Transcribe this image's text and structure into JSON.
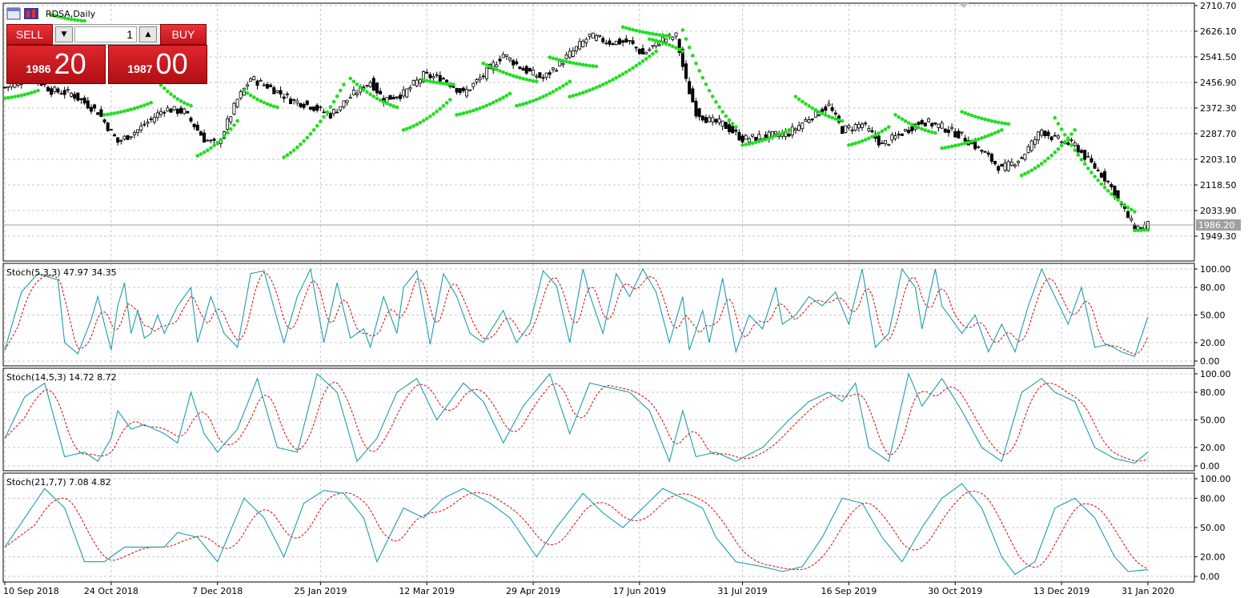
{
  "window": {
    "symbol_title": "RDSA,Daily"
  },
  "trade_panel": {
    "sell_label": "SELL",
    "buy_label": "BUY",
    "lot": "1",
    "sell_price_small": "1986",
    "sell_price_big": "20",
    "buy_price_small": "1987",
    "buy_price_big": "00"
  },
  "colors": {
    "sar": "#22dd22",
    "main_line": "#1f9bb0",
    "signal_line": "#e00000",
    "candle": "#000000"
  },
  "chart_data": [
    {
      "type": "candlestick",
      "yticks": [
        "2710.70",
        "2626.10",
        "2541.50",
        "2456.90",
        "2372.30",
        "2287.70",
        "2203.10",
        "2118.50",
        "2033.90",
        "1949.30"
      ],
      "ylim": [
        1908,
        2712
      ],
      "current_price": "1986.20",
      "close_anchors": [
        [
          0,
          2440
        ],
        [
          8,
          2480
        ],
        [
          14,
          2430
        ],
        [
          20,
          2420
        ],
        [
          28,
          2360
        ],
        [
          34,
          2260
        ],
        [
          40,
          2300
        ],
        [
          48,
          2370
        ],
        [
          54,
          2360
        ],
        [
          60,
          2270
        ],
        [
          64,
          2250
        ],
        [
          70,
          2400
        ],
        [
          74,
          2470
        ],
        [
          80,
          2440
        ],
        [
          86,
          2400
        ],
        [
          92,
          2380
        ],
        [
          98,
          2350
        ],
        [
          104,
          2410
        ],
        [
          110,
          2460
        ],
        [
          114,
          2400
        ],
        [
          120,
          2420
        ],
        [
          126,
          2480
        ],
        [
          132,
          2470
        ],
        [
          138,
          2420
        ],
        [
          144,
          2480
        ],
        [
          150,
          2550
        ],
        [
          156,
          2500
        ],
        [
          162,
          2470
        ],
        [
          170,
          2550
        ],
        [
          176,
          2610
        ],
        [
          182,
          2590
        ],
        [
          188,
          2590
        ],
        [
          192,
          2550
        ],
        [
          198,
          2600
        ],
        [
          202,
          2610
        ],
        [
          205,
          2460
        ],
        [
          208,
          2360
        ],
        [
          212,
          2330
        ],
        [
          216,
          2320
        ],
        [
          222,
          2270
        ],
        [
          230,
          2280
        ],
        [
          236,
          2290
        ],
        [
          242,
          2340
        ],
        [
          248,
          2380
        ],
        [
          252,
          2300
        ],
        [
          258,
          2320
        ],
        [
          264,
          2250
        ],
        [
          270,
          2290
        ],
        [
          276,
          2330
        ],
        [
          282,
          2310
        ],
        [
          288,
          2280
        ],
        [
          294,
          2230
        ],
        [
          300,
          2170
        ],
        [
          306,
          2210
        ],
        [
          312,
          2300
        ],
        [
          316,
          2270
        ],
        [
          322,
          2250
        ],
        [
          326,
          2200
        ],
        [
          332,
          2130
        ],
        [
          336,
          2050
        ],
        [
          340,
          1975
        ],
        [
          344,
          1986
        ]
      ],
      "sar_segments": [
        [
          0,
          10,
          2405,
          2430,
          "up"
        ],
        [
          14,
          24,
          2680,
          2660,
          "down"
        ],
        [
          30,
          44,
          2350,
          2390,
          "up"
        ],
        [
          46,
          56,
          2460,
          2380,
          "down"
        ],
        [
          58,
          70,
          2215,
          2330,
          "up"
        ],
        [
          72,
          82,
          2430,
          2375,
          "down"
        ],
        [
          84,
          102,
          2210,
          2450,
          "up"
        ],
        [
          104,
          118,
          2470,
          2375,
          "down"
        ],
        [
          120,
          134,
          2300,
          2400,
          "up"
        ],
        [
          126,
          135,
          2465,
          2450,
          "down"
        ],
        [
          136,
          152,
          2350,
          2420,
          "up"
        ],
        [
          144,
          160,
          2520,
          2460,
          "down"
        ],
        [
          154,
          170,
          2380,
          2460,
          "up"
        ],
        [
          164,
          178,
          2540,
          2510,
          "down"
        ],
        [
          170,
          196,
          2410,
          2560,
          "up"
        ],
        [
          186,
          200,
          2640,
          2610,
          "down"
        ],
        [
          194,
          204,
          2600,
          2560,
          "up"
        ],
        [
          204,
          220,
          2630,
          2310,
          "down"
        ],
        [
          222,
          236,
          2250,
          2300,
          "up"
        ],
        [
          238,
          252,
          2410,
          2330,
          "down"
        ],
        [
          254,
          266,
          2250,
          2310,
          "up"
        ],
        [
          268,
          280,
          2350,
          2290,
          "down"
        ],
        [
          282,
          300,
          2240,
          2300,
          "up"
        ],
        [
          288,
          302,
          2360,
          2320,
          "down"
        ],
        [
          306,
          322,
          2150,
          2300,
          "up"
        ],
        [
          316,
          340,
          2340,
          2030,
          "down"
        ],
        [
          340,
          344,
          1968,
          1970,
          "up"
        ]
      ],
      "xticks": [
        "10 Sep 2018",
        "24 Oct 2018",
        "7 Dec 2018",
        "25 Jan 2019",
        "12 Mar 2019",
        "29 Apr 2019",
        "17 Jun 2019",
        "31 Jul 2019",
        "16 Sep 2019",
        "30 Oct 2019",
        "13 Dec 2019",
        "31 Jan 2020"
      ]
    },
    {
      "type": "line",
      "title": "Stoch(5,3,3) 47.97 34.35",
      "yticks": [
        "100.00",
        "80.00",
        "50.00",
        "20.00",
        "0.00"
      ],
      "ylim": [
        0,
        100
      ],
      "signal_lag": 4,
      "main_anchors": [
        [
          0,
          12
        ],
        [
          5,
          75
        ],
        [
          10,
          95
        ],
        [
          16,
          88
        ],
        [
          18,
          20
        ],
        [
          22,
          8
        ],
        [
          26,
          45
        ],
        [
          28,
          70
        ],
        [
          30,
          40
        ],
        [
          32,
          12
        ],
        [
          34,
          60
        ],
        [
          36,
          85
        ],
        [
          38,
          30
        ],
        [
          40,
          55
        ],
        [
          42,
          25
        ],
        [
          44,
          30
        ],
        [
          46,
          50
        ],
        [
          48,
          30
        ],
        [
          52,
          60
        ],
        [
          56,
          80
        ],
        [
          58,
          20
        ],
        [
          62,
          70
        ],
        [
          66,
          30
        ],
        [
          70,
          15
        ],
        [
          74,
          95
        ],
        [
          78,
          98
        ],
        [
          82,
          45
        ],
        [
          84,
          20
        ],
        [
          88,
          70
        ],
        [
          92,
          100
        ],
        [
          96,
          20
        ],
        [
          100,
          85
        ],
        [
          104,
          25
        ],
        [
          108,
          35
        ],
        [
          110,
          15
        ],
        [
          114,
          70
        ],
        [
          118,
          30
        ],
        [
          120,
          80
        ],
        [
          124,
          98
        ],
        [
          128,
          18
        ],
        [
          132,
          95
        ],
        [
          136,
          70
        ],
        [
          140,
          30
        ],
        [
          144,
          20
        ],
        [
          150,
          55
        ],
        [
          154,
          20
        ],
        [
          158,
          40
        ],
        [
          162,
          98
        ],
        [
          166,
          82
        ],
        [
          170,
          20
        ],
        [
          174,
          100
        ],
        [
          176,
          72
        ],
        [
          180,
          30
        ],
        [
          184,
          95
        ],
        [
          188,
          70
        ],
        [
          192,
          100
        ],
        [
          196,
          75
        ],
        [
          200,
          20
        ],
        [
          204,
          70
        ],
        [
          206,
          12
        ],
        [
          210,
          55
        ],
        [
          212,
          20
        ],
        [
          216,
          90
        ],
        [
          220,
          10
        ],
        [
          224,
          50
        ],
        [
          228,
          35
        ],
        [
          232,
          80
        ],
        [
          234,
          40
        ],
        [
          238,
          50
        ],
        [
          242,
          70
        ],
        [
          246,
          60
        ],
        [
          250,
          75
        ],
        [
          254,
          40
        ],
        [
          258,
          100
        ],
        [
          262,
          15
        ],
        [
          266,
          30
        ],
        [
          270,
          100
        ],
        [
          274,
          80
        ],
        [
          276,
          35
        ],
        [
          280,
          100
        ],
        [
          282,
          60
        ],
        [
          288,
          30
        ],
        [
          292,
          50
        ],
        [
          296,
          10
        ],
        [
          300,
          40
        ],
        [
          304,
          10
        ],
        [
          308,
          60
        ],
        [
          312,
          100
        ],
        [
          316,
          70
        ],
        [
          320,
          40
        ],
        [
          324,
          80
        ],
        [
          328,
          15
        ],
        [
          332,
          18
        ],
        [
          336,
          10
        ],
        [
          340,
          5
        ],
        [
          344,
          48
        ]
      ]
    },
    {
      "type": "line",
      "title": "Stoch(14,5,3) 14.72 8.72",
      "yticks": [
        "100.00",
        "80.00",
        "50.00",
        "20.00",
        "0.00"
      ],
      "ylim": [
        0,
        100
      ],
      "signal_lag": 6,
      "main_anchors": [
        [
          0,
          30
        ],
        [
          6,
          75
        ],
        [
          12,
          90
        ],
        [
          18,
          10
        ],
        [
          24,
          15
        ],
        [
          28,
          5
        ],
        [
          32,
          30
        ],
        [
          34,
          60
        ],
        [
          38,
          40
        ],
        [
          42,
          45
        ],
        [
          48,
          35
        ],
        [
          52,
          25
        ],
        [
          56,
          80
        ],
        [
          60,
          35
        ],
        [
          64,
          15
        ],
        [
          70,
          40
        ],
        [
          76,
          95
        ],
        [
          82,
          20
        ],
        [
          88,
          15
        ],
        [
          94,
          100
        ],
        [
          100,
          80
        ],
        [
          106,
          5
        ],
        [
          112,
          30
        ],
        [
          118,
          80
        ],
        [
          124,
          95
        ],
        [
          130,
          50
        ],
        [
          138,
          90
        ],
        [
          144,
          70
        ],
        [
          150,
          25
        ],
        [
          156,
          65
        ],
        [
          164,
          100
        ],
        [
          170,
          35
        ],
        [
          176,
          90
        ],
        [
          182,
          85
        ],
        [
          188,
          80
        ],
        [
          194,
          60
        ],
        [
          200,
          5
        ],
        [
          204,
          60
        ],
        [
          208,
          10
        ],
        [
          214,
          15
        ],
        [
          220,
          5
        ],
        [
          228,
          20
        ],
        [
          236,
          50
        ],
        [
          242,
          70
        ],
        [
          248,
          80
        ],
        [
          252,
          70
        ],
        [
          256,
          90
        ],
        [
          260,
          20
        ],
        [
          266,
          5
        ],
        [
          272,
          100
        ],
        [
          276,
          65
        ],
        [
          282,
          95
        ],
        [
          288,
          60
        ],
        [
          294,
          20
        ],
        [
          300,
          5
        ],
        [
          306,
          80
        ],
        [
          312,
          95
        ],
        [
          316,
          80
        ],
        [
          322,
          70
        ],
        [
          328,
          20
        ],
        [
          334,
          8
        ],
        [
          340,
          3
        ],
        [
          344,
          15
        ]
      ]
    },
    {
      "type": "line",
      "title": "Stoch(21,7,7) 7.08 4.82",
      "yticks": [
        "100.00",
        "80.00",
        "50.00",
        "20.00",
        "0.00"
      ],
      "ylim": [
        0,
        100
      ],
      "signal_lag": 9,
      "main_anchors": [
        [
          0,
          30
        ],
        [
          6,
          60
        ],
        [
          12,
          90
        ],
        [
          18,
          70
        ],
        [
          24,
          15
        ],
        [
          30,
          15
        ],
        [
          36,
          30
        ],
        [
          42,
          30
        ],
        [
          48,
          30
        ],
        [
          52,
          45
        ],
        [
          58,
          40
        ],
        [
          64,
          15
        ],
        [
          72,
          80
        ],
        [
          78,
          60
        ],
        [
          84,
          20
        ],
        [
          90,
          75
        ],
        [
          96,
          88
        ],
        [
          102,
          85
        ],
        [
          108,
          60
        ],
        [
          112,
          15
        ],
        [
          120,
          70
        ],
        [
          126,
          60
        ],
        [
          132,
          80
        ],
        [
          138,
          90
        ],
        [
          146,
          75
        ],
        [
          152,
          60
        ],
        [
          160,
          20
        ],
        [
          166,
          50
        ],
        [
          174,
          85
        ],
        [
          180,
          65
        ],
        [
          186,
          50
        ],
        [
          192,
          70
        ],
        [
          198,
          90
        ],
        [
          204,
          80
        ],
        [
          210,
          70
        ],
        [
          214,
          40
        ],
        [
          220,
          15
        ],
        [
          228,
          10
        ],
        [
          234,
          5
        ],
        [
          240,
          10
        ],
        [
          246,
          40
        ],
        [
          252,
          80
        ],
        [
          258,
          75
        ],
        [
          264,
          40
        ],
        [
          270,
          15
        ],
        [
          276,
          50
        ],
        [
          282,
          80
        ],
        [
          288,
          95
        ],
        [
          294,
          70
        ],
        [
          300,
          20
        ],
        [
          304,
          2
        ],
        [
          310,
          15
        ],
        [
          316,
          70
        ],
        [
          322,
          80
        ],
        [
          328,
          60
        ],
        [
          334,
          20
        ],
        [
          338,
          5
        ],
        [
          344,
          7
        ]
      ]
    }
  ]
}
